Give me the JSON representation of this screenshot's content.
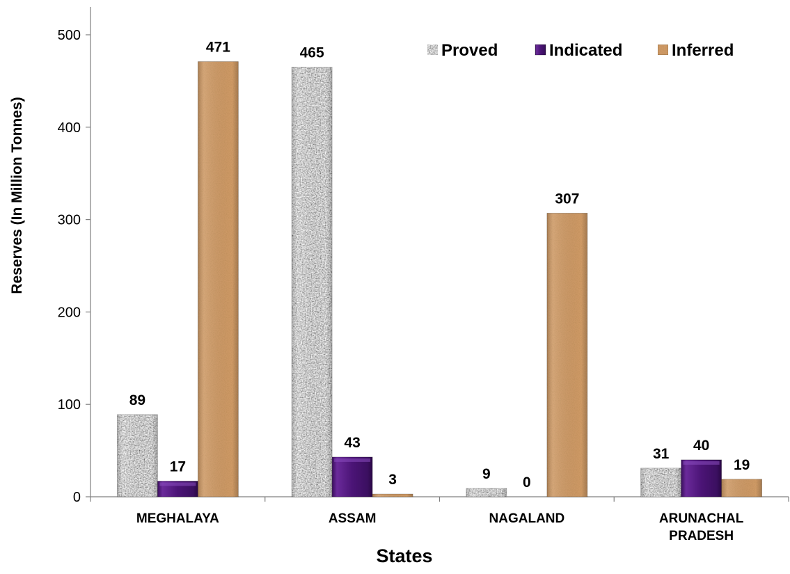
{
  "chart_data": {
    "type": "bar",
    "categories": [
      [
        "MEGHALAYA"
      ],
      [
        "ASSAM"
      ],
      [
        "NAGALAND"
      ],
      [
        "ARUNACHAL",
        "PRADESH"
      ]
    ],
    "series": [
      {
        "name": "Proved",
        "values": [
          89,
          465,
          9,
          31
        ],
        "color": "#b8b8b8",
        "texture": "granite"
      },
      {
        "name": "Indicated",
        "values": [
          17,
          43,
          0,
          40
        ],
        "color": "#4b1476",
        "texture": "bevel"
      },
      {
        "name": "Inferred",
        "values": [
          471,
          3,
          307,
          19
        ],
        "color": "#cf9a66",
        "texture": "sand"
      }
    ],
    "xlabel": "States",
    "ylabel": "Reserves (In Million Tonnes)",
    "ylim": [
      0,
      500
    ],
    "yticks": [
      0,
      100,
      200,
      300,
      400,
      500
    ],
    "grid": false,
    "legend_position": "top-right",
    "data_labels": true
  }
}
